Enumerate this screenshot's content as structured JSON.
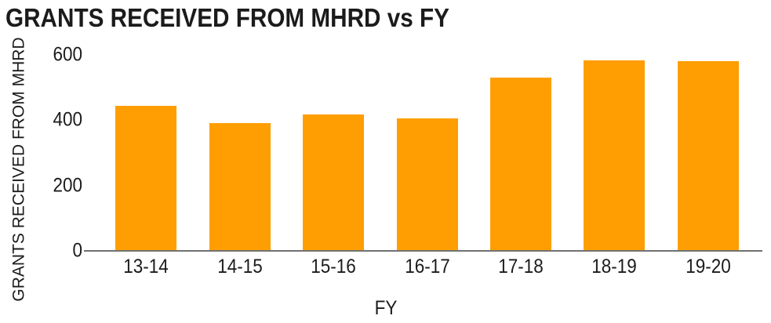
{
  "chart_data": {
    "type": "bar",
    "title": "GRANTS RECEIVED FROM MHRD vs FY",
    "xlabel": "FY",
    "ylabel": "GRANTS RECEIVED FROM MHRD",
    "categories": [
      "13-14",
      "14-15",
      "15-16",
      "16-17",
      "17-18",
      "18-19",
      "19-20"
    ],
    "values": [
      442,
      389,
      416,
      403,
      528,
      582,
      578
    ],
    "yticks": [
      0,
      200,
      400,
      600
    ],
    "ylim": [
      0,
      600
    ],
    "grid": false,
    "legend_position": "none",
    "bar_color": "#ff9e02",
    "axis_line_color": "#717171",
    "text_color": "#1b1b1b",
    "background_color": "#ffffff"
  }
}
